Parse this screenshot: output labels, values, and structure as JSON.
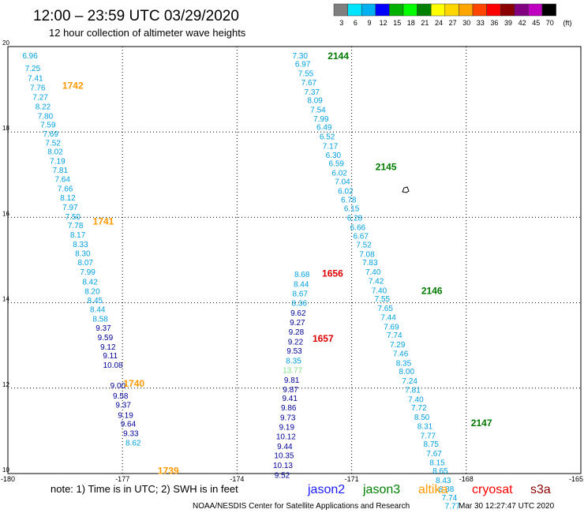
{
  "header": {
    "title": "12:00 – 23:59 UTC 03/29/2020",
    "subtitle": "12 hour collection of altimeter wave heights"
  },
  "colorbar": {
    "labels": [
      "3",
      "6",
      "9",
      "12",
      "15",
      "18",
      "21",
      "24",
      "27",
      "30",
      "33",
      "36",
      "39",
      "42",
      "45",
      "70"
    ],
    "unit": "(ft)",
    "colors": [
      "#7f7f7f",
      "#00e5ff",
      "#00b0f0",
      "#0000ff",
      "#00b000",
      "#00ff00",
      "#008000",
      "#ffff00",
      "#ffd700",
      "#ffa500",
      "#ff4500",
      "#ff0000",
      "#8b0000",
      "#800080",
      "#c000c0",
      "#000000"
    ]
  },
  "notes": {
    "note": "note: 1) Time is in UTC; 2) SWH is in feet",
    "credit": "NOAA/NESDIS Center for Satellite Applications and Research",
    "timestamp": "Mar 30 12:27:47 UTC 2020"
  },
  "legend": [
    {
      "name": "jason2",
      "color": "#1a1aff"
    },
    {
      "name": "jason3",
      "color": "#008000"
    },
    {
      "name": "altika",
      "color": "#ff9900"
    },
    {
      "name": "cryosat",
      "color": "#ff0000"
    },
    {
      "name": "s3a",
      "color": "#8b0000"
    }
  ],
  "chart_data": {
    "type": "scatter",
    "xlim": [
      -180,
      -165
    ],
    "ylim": [
      10,
      20
    ],
    "xticks": [
      "-180",
      "-177",
      "-174",
      "-171",
      "-168",
      "-165"
    ],
    "yticks": [
      "10",
      "12",
      "14",
      "16",
      "18",
      "20"
    ],
    "grid": true,
    "swath_colors": {
      "low": "#00a0e0",
      "mid": "#000099",
      "high": "#80e080"
    },
    "tracks": [
      {
        "satellite": "altika",
        "label_color": "#ff9900",
        "passes": [
          {
            "time": "1742",
            "lon": -178.3,
            "lat": 19.1
          },
          {
            "time": "1741",
            "lon": -177.5,
            "lat": 15.92
          },
          {
            "time": "1740",
            "lon": -176.7,
            "lat": 12.13
          },
          {
            "time": "1739",
            "lon": -175.8,
            "lat": 10.08
          }
        ],
        "points": [
          {
            "lon": -179.42,
            "lat": 19.8,
            "v": "6.96"
          },
          {
            "lon": -179.35,
            "lat": 19.5,
            "v": "7.25"
          },
          {
            "lon": -179.28,
            "lat": 19.27,
            "v": "7.41"
          },
          {
            "lon": -179.22,
            "lat": 19.05,
            "v": "7.76"
          },
          {
            "lon": -179.15,
            "lat": 18.83,
            "v": "7.27"
          },
          {
            "lon": -179.08,
            "lat": 18.6,
            "v": "8.22"
          },
          {
            "lon": -179.02,
            "lat": 18.38,
            "v": "7.80"
          },
          {
            "lon": -178.95,
            "lat": 18.18,
            "v": "7.59"
          },
          {
            "lon": -178.88,
            "lat": 17.97,
            "v": "7.69"
          },
          {
            "lon": -178.82,
            "lat": 17.75,
            "v": "7.52"
          },
          {
            "lon": -178.76,
            "lat": 17.55,
            "v": "8.02"
          },
          {
            "lon": -178.7,
            "lat": 17.33,
            "v": "7.19"
          },
          {
            "lon": -178.63,
            "lat": 17.12,
            "v": "7.81"
          },
          {
            "lon": -178.57,
            "lat": 16.9,
            "v": "7.64"
          },
          {
            "lon": -178.5,
            "lat": 16.68,
            "v": "7.66"
          },
          {
            "lon": -178.43,
            "lat": 16.47,
            "v": "8.12"
          },
          {
            "lon": -178.37,
            "lat": 16.25,
            "v": "7.97"
          },
          {
            "lon": -178.3,
            "lat": 16.03,
            "v": "7.50"
          },
          {
            "lon": -178.23,
            "lat": 15.82,
            "v": "7.78"
          },
          {
            "lon": -178.17,
            "lat": 15.6,
            "v": "8.17"
          },
          {
            "lon": -178.1,
            "lat": 15.38,
            "v": "8.33"
          },
          {
            "lon": -178.04,
            "lat": 15.17,
            "v": "8.30"
          },
          {
            "lon": -177.97,
            "lat": 14.95,
            "v": "8.07"
          },
          {
            "lon": -177.91,
            "lat": 14.73,
            "v": "7.99"
          },
          {
            "lon": -177.85,
            "lat": 14.5,
            "v": "8.42"
          },
          {
            "lon": -177.79,
            "lat": 14.28,
            "v": "8.20"
          },
          {
            "lon": -177.72,
            "lat": 14.07,
            "v": "8.45"
          },
          {
            "lon": -177.65,
            "lat": 13.85,
            "v": "8.44"
          },
          {
            "lon": -177.58,
            "lat": 13.63,
            "v": "8.58"
          },
          {
            "lon": -177.5,
            "lat": 13.42,
            "v": "9.37"
          },
          {
            "lon": -177.45,
            "lat": 13.2,
            "v": "9.59"
          },
          {
            "lon": -177.38,
            "lat": 12.98,
            "v": "9.12"
          },
          {
            "lon": -177.32,
            "lat": 12.77,
            "v": "9.11"
          },
          {
            "lon": -177.25,
            "lat": 12.55,
            "v": "10.08"
          },
          {
            "lon": -177.12,
            "lat": 12.07,
            "v": "9.00"
          },
          {
            "lon": -177.05,
            "lat": 11.83,
            "v": "9.58"
          },
          {
            "lon": -176.98,
            "lat": 11.62,
            "v": "9.37"
          },
          {
            "lon": -176.92,
            "lat": 11.38,
            "v": "9.19"
          },
          {
            "lon": -176.85,
            "lat": 11.17,
            "v": "9.64"
          },
          {
            "lon": -176.78,
            "lat": 10.95,
            "v": "9.33"
          },
          {
            "lon": -176.72,
            "lat": 10.73,
            "v": "8.62"
          }
        ]
      },
      {
        "satellite": "cryosat",
        "label_color": "#dd0000",
        "passes": [
          {
            "time": "1656",
            "lon": -171.5,
            "lat": 14.7
          },
          {
            "time": "1657",
            "lon": -171.75,
            "lat": 13.18
          }
        ],
        "points": [
          {
            "lon": -172.3,
            "lat": 14.68,
            "v": "8.68"
          },
          {
            "lon": -172.32,
            "lat": 14.45,
            "v": "8.44"
          },
          {
            "lon": -172.35,
            "lat": 14.22,
            "v": "8.67"
          },
          {
            "lon": -172.37,
            "lat": 14.0,
            "v": "8.36"
          },
          {
            "lon": -172.4,
            "lat": 13.77,
            "v": "9.62"
          },
          {
            "lon": -172.42,
            "lat": 13.55,
            "v": "9.27"
          },
          {
            "lon": -172.45,
            "lat": 13.33,
            "v": "9.28"
          },
          {
            "lon": -172.47,
            "lat": 13.1,
            "v": "9.22"
          },
          {
            "lon": -172.5,
            "lat": 12.88,
            "v": "9.53"
          },
          {
            "lon": -172.52,
            "lat": 12.65,
            "v": "8.35"
          },
          {
            "lon": -172.55,
            "lat": 12.43,
            "v": "13.77"
          },
          {
            "lon": -172.57,
            "lat": 12.2,
            "v": "9.81"
          },
          {
            "lon": -172.6,
            "lat": 11.98,
            "v": "9.87"
          },
          {
            "lon": -172.62,
            "lat": 11.77,
            "v": "9.41"
          },
          {
            "lon": -172.65,
            "lat": 11.55,
            "v": "9.86"
          },
          {
            "lon": -172.67,
            "lat": 11.32,
            "v": "9.73"
          },
          {
            "lon": -172.7,
            "lat": 11.1,
            "v": "9.19"
          },
          {
            "lon": -172.72,
            "lat": 10.88,
            "v": "10.12"
          },
          {
            "lon": -172.75,
            "lat": 10.65,
            "v": "9.44"
          },
          {
            "lon": -172.77,
            "lat": 10.43,
            "v": "10.35"
          },
          {
            "lon": -172.8,
            "lat": 10.2,
            "v": "10.13"
          },
          {
            "lon": -172.82,
            "lat": 9.97,
            "v": "9.52"
          }
        ]
      },
      {
        "satellite": "jason3",
        "label_color": "#007a00",
        "passes": [
          {
            "time": "2144",
            "lon": -171.35,
            "lat": 19.8
          },
          {
            "time": "2145",
            "lon": -170.1,
            "lat": 17.2
          },
          {
            "time": "2146",
            "lon": -168.9,
            "lat": 14.3
          },
          {
            "time": "2147",
            "lon": -167.6,
            "lat": 11.2
          }
        ],
        "points": [
          {
            "lon": -172.35,
            "lat": 19.8,
            "v": "7.30"
          },
          {
            "lon": -172.28,
            "lat": 19.6,
            "v": "6.97"
          },
          {
            "lon": -172.2,
            "lat": 19.38,
            "v": "7.55"
          },
          {
            "lon": -172.12,
            "lat": 19.17,
            "v": "7.67"
          },
          {
            "lon": -172.04,
            "lat": 18.95,
            "v": "7.37"
          },
          {
            "lon": -171.96,
            "lat": 18.75,
            "v": "8.09"
          },
          {
            "lon": -171.88,
            "lat": 18.53,
            "v": "7.54"
          },
          {
            "lon": -171.8,
            "lat": 18.32,
            "v": "7.99"
          },
          {
            "lon": -171.72,
            "lat": 18.12,
            "v": "6.49"
          },
          {
            "lon": -171.64,
            "lat": 17.9,
            "v": "6.52"
          },
          {
            "lon": -171.56,
            "lat": 17.68,
            "v": "7.17"
          },
          {
            "lon": -171.48,
            "lat": 17.47,
            "v": "6.30"
          },
          {
            "lon": -171.4,
            "lat": 17.27,
            "v": "6.59"
          },
          {
            "lon": -171.32,
            "lat": 17.05,
            "v": "6.02"
          },
          {
            "lon": -171.24,
            "lat": 16.85,
            "v": "7.04"
          },
          {
            "lon": -171.16,
            "lat": 16.63,
            "v": "6.02"
          },
          {
            "lon": -171.08,
            "lat": 16.42,
            "v": "6.78"
          },
          {
            "lon": -171.0,
            "lat": 16.22,
            "v": "6.15"
          },
          {
            "lon": -170.92,
            "lat": 16.0,
            "v": "6.28"
          },
          {
            "lon": -170.84,
            "lat": 15.78,
            "v": "6.66"
          },
          {
            "lon": -170.76,
            "lat": 15.57,
            "v": "6.67"
          },
          {
            "lon": -170.68,
            "lat": 15.37,
            "v": "7.52"
          },
          {
            "lon": -170.6,
            "lat": 15.15,
            "v": "7.08"
          },
          {
            "lon": -170.52,
            "lat": 14.95,
            "v": "7.83"
          },
          {
            "lon": -170.44,
            "lat": 14.73,
            "v": "7.40"
          },
          {
            "lon": -170.36,
            "lat": 14.52,
            "v": "7.42"
          },
          {
            "lon": -170.28,
            "lat": 14.3,
            "v": "7.40"
          },
          {
            "lon": -170.2,
            "lat": 14.1,
            "v": "7.55"
          },
          {
            "lon": -170.12,
            "lat": 13.88,
            "v": "7.65"
          },
          {
            "lon": -170.04,
            "lat": 13.67,
            "v": "7.44"
          },
          {
            "lon": -169.96,
            "lat": 13.45,
            "v": "7.69"
          },
          {
            "lon": -169.88,
            "lat": 13.25,
            "v": "7.74"
          },
          {
            "lon": -169.8,
            "lat": 13.03,
            "v": "7.29"
          },
          {
            "lon": -169.72,
            "lat": 12.82,
            "v": "7.46"
          },
          {
            "lon": -169.64,
            "lat": 12.6,
            "v": "8.35"
          },
          {
            "lon": -169.56,
            "lat": 12.4,
            "v": "8.00"
          },
          {
            "lon": -169.48,
            "lat": 12.18,
            "v": "7.24"
          },
          {
            "lon": -169.4,
            "lat": 11.97,
            "v": "7.81"
          },
          {
            "lon": -169.32,
            "lat": 11.75,
            "v": "7.40"
          },
          {
            "lon": -169.24,
            "lat": 11.55,
            "v": "7.72"
          },
          {
            "lon": -169.16,
            "lat": 11.33,
            "v": "8.50"
          },
          {
            "lon": -169.08,
            "lat": 11.12,
            "v": "8.31"
          },
          {
            "lon": -169.0,
            "lat": 10.9,
            "v": "7.77"
          },
          {
            "lon": -168.92,
            "lat": 10.7,
            "v": "8.75"
          },
          {
            "lon": -168.84,
            "lat": 10.48,
            "v": "7.67"
          },
          {
            "lon": -168.76,
            "lat": 10.27,
            "v": "8.15"
          },
          {
            "lon": -168.68,
            "lat": 10.07,
            "v": "8.65"
          },
          {
            "lon": -168.6,
            "lat": 9.85,
            "v": "8.43"
          },
          {
            "lon": -168.52,
            "lat": 9.65,
            "v": "8.38"
          },
          {
            "lon": -168.44,
            "lat": 9.45,
            "v": "7.74"
          },
          {
            "lon": -168.36,
            "lat": 9.25,
            "v": "7.77"
          }
        ]
      }
    ]
  }
}
